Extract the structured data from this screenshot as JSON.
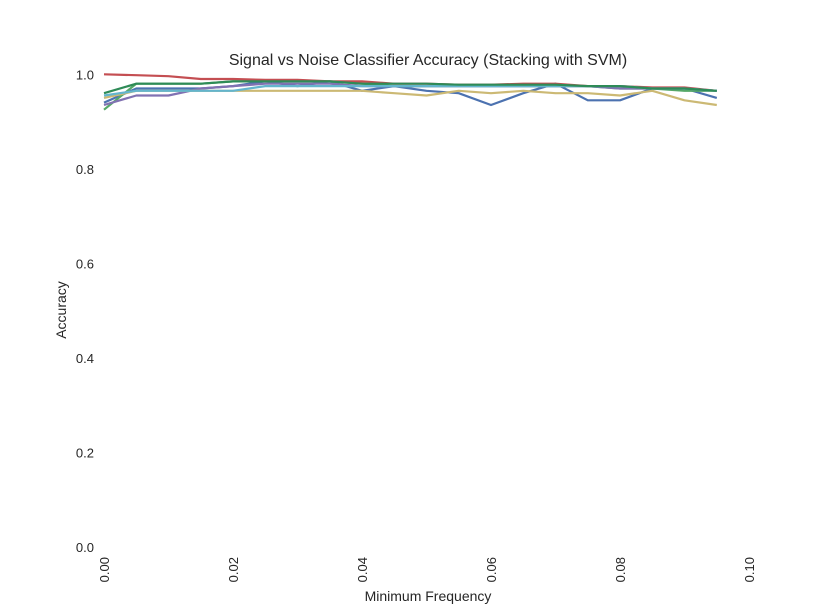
{
  "chart_data": {
    "type": "line",
    "title": "Signal vs Noise Classifier Accuracy (Stacking with SVM)",
    "xlabel": "Minimum Frequency",
    "ylabel": "Accuracy",
    "xlim": [
      0.0,
      0.1
    ],
    "ylim": [
      0.0,
      1.1
    ],
    "grid": false,
    "x_ticks": [
      "0.00",
      "0.02",
      "0.04",
      "0.06",
      "0.08",
      "0.10"
    ],
    "y_ticks": [
      "0.0",
      "0.2",
      "0.4",
      "0.6",
      "0.8",
      "1.0"
    ],
    "x": [
      0.0,
      0.005,
      0.01,
      0.015,
      0.02,
      0.025,
      0.03,
      0.035,
      0.04,
      0.045,
      0.05,
      0.055,
      0.06,
      0.065,
      0.07,
      0.075,
      0.08,
      0.085,
      0.09,
      0.095
    ],
    "series": [
      {
        "color": "#4c72b0",
        "values": [
          0.94,
          0.97,
          0.97,
          0.97,
          0.975,
          0.985,
          0.975,
          0.985,
          0.965,
          0.975,
          0.965,
          0.96,
          0.935,
          0.96,
          0.98,
          0.945,
          0.945,
          0.97,
          0.97,
          0.95
        ]
      },
      {
        "color": "#55a868",
        "values": [
          0.925,
          0.98,
          0.98,
          0.98,
          0.985,
          0.985,
          0.985,
          0.985,
          0.98,
          0.975,
          0.975,
          0.975,
          0.975,
          0.975,
          0.975,
          0.975,
          0.97,
          0.97,
          0.965,
          0.965
        ]
      },
      {
        "color": "#c44e52",
        "values": [
          1.0,
          0.998,
          0.996,
          0.99,
          0.99,
          0.988,
          0.988,
          0.985,
          0.985,
          0.98,
          0.98,
          0.978,
          0.978,
          0.98,
          0.98,
          0.975,
          0.975,
          0.972,
          0.972,
          0.965
        ]
      },
      {
        "color": "#8172b2",
        "values": [
          0.935,
          0.955,
          0.955,
          0.97,
          0.975,
          0.98,
          0.98,
          0.98,
          0.975,
          0.975,
          0.975,
          0.975,
          0.975,
          0.975,
          0.975,
          0.975,
          0.97,
          0.97,
          0.97,
          0.965
        ]
      },
      {
        "color": "#ccb974",
        "values": [
          0.95,
          0.965,
          0.965,
          0.965,
          0.965,
          0.965,
          0.965,
          0.965,
          0.965,
          0.96,
          0.955,
          0.965,
          0.96,
          0.965,
          0.96,
          0.96,
          0.955,
          0.965,
          0.945,
          0.935
        ]
      },
      {
        "color": "#64b5cd",
        "values": [
          0.955,
          0.965,
          0.965,
          0.965,
          0.965,
          0.975,
          0.975,
          0.975,
          0.975,
          0.975,
          0.975,
          0.975,
          0.975,
          0.975,
          0.975,
          0.975,
          0.975,
          0.97,
          0.97,
          0.965
        ]
      },
      {
        "color": "#2e8b57",
        "values": [
          0.96,
          0.98,
          0.98,
          0.98,
          0.985,
          0.985,
          0.985,
          0.985,
          0.98,
          0.98,
          0.98,
          0.978,
          0.978,
          0.978,
          0.978,
          0.975,
          0.975,
          0.97,
          0.97,
          0.965
        ]
      }
    ]
  }
}
